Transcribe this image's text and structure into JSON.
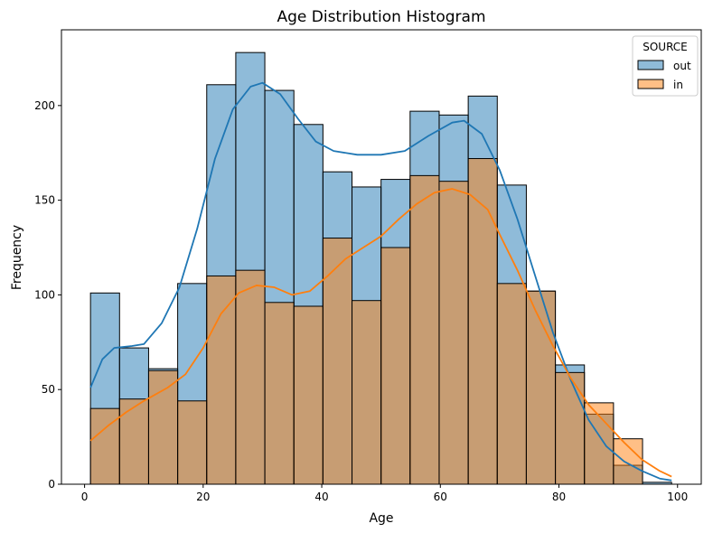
{
  "chart_data": {
    "type": "histogram",
    "title": "Age Distribution Histogram",
    "xlabel": "Age",
    "ylabel": "Frequency",
    "xlim": [
      -3.9,
      104.0
    ],
    "ylim": [
      0,
      240
    ],
    "xticks": [
      0,
      20,
      40,
      60,
      80,
      100
    ],
    "yticks": [
      0,
      50,
      100,
      150,
      200
    ],
    "bin_edges": [
      1,
      5.9,
      10.8,
      15.7,
      20.6,
      25.5,
      30.4,
      35.3,
      40.2,
      45.1,
      50.0,
      54.9,
      59.8,
      64.7,
      69.6,
      74.5,
      79.4,
      84.3,
      89.2,
      94.1,
      99.0
    ],
    "legend": {
      "title": "SOURCE",
      "position": "top-right"
    },
    "series": [
      {
        "name": "out",
        "color": "#1f77b4",
        "values": [
          101,
          72,
          61,
          106,
          211,
          228,
          208,
          190,
          165,
          157,
          161,
          197,
          195,
          205,
          158,
          102,
          63,
          37,
          10,
          1
        ],
        "kde": [
          [
            1,
            51
          ],
          [
            3,
            66
          ],
          [
            5,
            72
          ],
          [
            8,
            73
          ],
          [
            10,
            74
          ],
          [
            13,
            85
          ],
          [
            16,
            104
          ],
          [
            19,
            135
          ],
          [
            22,
            172
          ],
          [
            25,
            198
          ],
          [
            28,
            210
          ],
          [
            30,
            212
          ],
          [
            33,
            206
          ],
          [
            36,
            193
          ],
          [
            39,
            181
          ],
          [
            42,
            176
          ],
          [
            46,
            174
          ],
          [
            50,
            174
          ],
          [
            54,
            176
          ],
          [
            58,
            184
          ],
          [
            62,
            191
          ],
          [
            64,
            192
          ],
          [
            67,
            185
          ],
          [
            70,
            166
          ],
          [
            73,
            140
          ],
          [
            76,
            110
          ],
          [
            79,
            80
          ],
          [
            82,
            55
          ],
          [
            85,
            34
          ],
          [
            88,
            20
          ],
          [
            91,
            12
          ],
          [
            94,
            7
          ],
          [
            97,
            3
          ],
          [
            99,
            2
          ]
        ]
      },
      {
        "name": "in",
        "color": "#ff7f0e",
        "values": [
          40,
          45,
          60,
          44,
          110,
          113,
          96,
          94,
          130,
          97,
          125,
          163,
          160,
          172,
          106,
          102,
          59,
          43,
          24,
          0
        ],
        "kde": [
          [
            1,
            23
          ],
          [
            4,
            31
          ],
          [
            7,
            38
          ],
          [
            10,
            44
          ],
          [
            14,
            51
          ],
          [
            17,
            58
          ],
          [
            20,
            72
          ],
          [
            23,
            90
          ],
          [
            26,
            101
          ],
          [
            29,
            105
          ],
          [
            32,
            104
          ],
          [
            35,
            100
          ],
          [
            38,
            102
          ],
          [
            41,
            110
          ],
          [
            44,
            119
          ],
          [
            47,
            125
          ],
          [
            50,
            131
          ],
          [
            53,
            140
          ],
          [
            56,
            148
          ],
          [
            59,
            154
          ],
          [
            62,
            156
          ],
          [
            65,
            153
          ],
          [
            68,
            145
          ],
          [
            70,
            132
          ],
          [
            73,
            113
          ],
          [
            76,
            92
          ],
          [
            79,
            73
          ],
          [
            82,
            56
          ],
          [
            85,
            42
          ],
          [
            88,
            32
          ],
          [
            91,
            22
          ],
          [
            94,
            13
          ],
          [
            97,
            7
          ],
          [
            99,
            4
          ]
        ]
      }
    ]
  }
}
